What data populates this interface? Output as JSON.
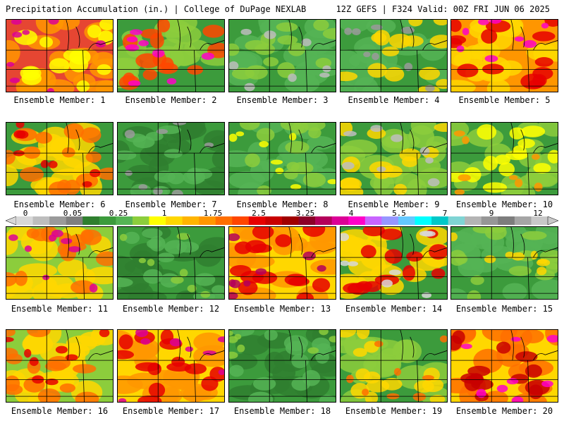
{
  "header": {
    "left": "Precipitation Accumulation (in.) | College of DuPage NEXLAB",
    "right": "12Z GEFS | F324 Valid: 00Z FRI JUN 06 2025"
  },
  "colorbar": {
    "labels": [
      "0",
      "0.05",
      "0.25",
      "1",
      "1.75",
      "2.5",
      "3.25",
      "4",
      "5.5",
      "7",
      "9",
      "12"
    ],
    "colors": [
      "#d8d8d8",
      "#bdbdbd",
      "#9a9a9a",
      "#7f7f7f",
      "#2f7f2f",
      "#3c9b3c",
      "#55b455",
      "#8ccd3c",
      "#ffff00",
      "#ffd700",
      "#ffb400",
      "#ff9600",
      "#ff6e00",
      "#ff4600",
      "#e60000",
      "#c80000",
      "#a00000",
      "#8c0028",
      "#b4005a",
      "#dc0096",
      "#ff00c8",
      "#c864ff",
      "#9696ff",
      "#64c8ff",
      "#00ffff",
      "#00c8c8",
      "#7fd4d4",
      "#b4b4b4",
      "#969696",
      "#7d7d7d",
      "#a5a5a5",
      "#c8c8c8"
    ]
  },
  "panels": [
    {
      "label": "Ensemble Member: 1",
      "colors": [
        "#e64632",
        "#ff9600",
        "#ffff00",
        "#dc0096"
      ]
    },
    {
      "label": "Ensemble Member: 2",
      "colors": [
        "#3c9b3c",
        "#8ccd3c",
        "#ff4600",
        "#ff00c8"
      ]
    },
    {
      "label": "Ensemble Member: 3",
      "colors": [
        "#3c9b3c",
        "#55b455",
        "#8ccd3c",
        "#bdbdbd"
      ]
    },
    {
      "label": "Ensemble Member: 4",
      "colors": [
        "#3c9b3c",
        "#55b455",
        "#ffd700",
        "#9a9a9a"
      ]
    },
    {
      "label": "Ensemble Member: 5",
      "colors": [
        "#ff9600",
        "#ffd700",
        "#e60000",
        "#ff00c8"
      ]
    },
    {
      "label": "Ensemble Member: 6",
      "colors": [
        "#3c9b3c",
        "#ffd700",
        "#ff6e00",
        "#e60000"
      ]
    },
    {
      "label": "Ensemble Member: 7",
      "colors": [
        "#3c9b3c",
        "#2f7f2f",
        "#55b455",
        "#9a9a9a"
      ]
    },
    {
      "label": "Ensemble Member: 8",
      "colors": [
        "#3c9b3c",
        "#55b455",
        "#8ccd3c",
        "#ffff00"
      ]
    },
    {
      "label": "Ensemble Member: 9",
      "colors": [
        "#3c9b3c",
        "#8ccd3c",
        "#ffd700",
        "#bdbdbd"
      ]
    },
    {
      "label": "Ensemble Member: 10",
      "colors": [
        "#3c9b3c",
        "#8ccd3c",
        "#ffff00",
        "#ff9600"
      ]
    },
    {
      "label": "Ensemble Member: 11",
      "colors": [
        "#8ccd3c",
        "#ffd700",
        "#ff6e00",
        "#dc0096"
      ]
    },
    {
      "label": "Ensemble Member: 12",
      "colors": [
        "#3c9b3c",
        "#2f7f2f",
        "#55b455",
        "#8ccd3c"
      ]
    },
    {
      "label": "Ensemble Member: 13",
      "colors": [
        "#ffd700",
        "#ff9600",
        "#e60000",
        "#b4005a"
      ]
    },
    {
      "label": "Ensemble Member: 14",
      "colors": [
        "#3c9b3c",
        "#ffd700",
        "#e60000",
        "#d8d8d8"
      ]
    },
    {
      "label": "Ensemble Member: 15",
      "colors": [
        "#3c9b3c",
        "#55b455",
        "#8ccd3c",
        "#ffd700"
      ]
    },
    {
      "label": "Ensemble Member: 16",
      "colors": [
        "#8ccd3c",
        "#ffd700",
        "#ff6e00",
        "#e60000"
      ]
    },
    {
      "label": "Ensemble Member: 17",
      "colors": [
        "#ffd700",
        "#ff9600",
        "#e60000",
        "#dc0096"
      ]
    },
    {
      "label": "Ensemble Member: 18",
      "colors": [
        "#3c9b3c",
        "#2f7f2f",
        "#55b455",
        "#8ccd3c"
      ]
    },
    {
      "label": "Ensemble Member: 19",
      "colors": [
        "#3c9b3c",
        "#8ccd3c",
        "#ffd700",
        "#ff6e00"
      ]
    },
    {
      "label": "Ensemble Member: 20",
      "colors": [
        "#ffd700",
        "#ff6e00",
        "#c80000",
        "#ff00c8"
      ]
    }
  ]
}
